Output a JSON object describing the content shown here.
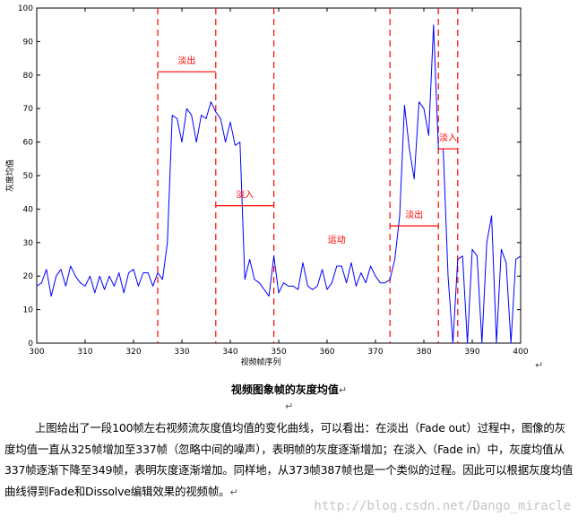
{
  "chart_data": {
    "type": "line",
    "title": "",
    "xlabel": "视频帧序列",
    "ylabel": "灰度均值",
    "xlim": [
      300,
      400
    ],
    "ylim": [
      0,
      100
    ],
    "x_ticks": [
      300,
      310,
      320,
      330,
      340,
      350,
      360,
      370,
      380,
      390,
      400
    ],
    "y_ticks": [
      0,
      10,
      20,
      30,
      40,
      50,
      60,
      70,
      80,
      90,
      100
    ],
    "series": [
      {
        "color": "#0000ff",
        "x": [
          300,
          301,
          302,
          303,
          304,
          305,
          306,
          307,
          308,
          309,
          310,
          311,
          312,
          313,
          314,
          315,
          316,
          317,
          318,
          319,
          320,
          321,
          322,
          323,
          324,
          325,
          326,
          327,
          328,
          329,
          330,
          331,
          332,
          333,
          334,
          335,
          336,
          337,
          338,
          339,
          340,
          341,
          342,
          343,
          344,
          345,
          346,
          347,
          348,
          349,
          350,
          351,
          352,
          353,
          354,
          355,
          356,
          357,
          358,
          359,
          360,
          361,
          362,
          363,
          364,
          365,
          366,
          367,
          368,
          369,
          370,
          371,
          372,
          373,
          374,
          375,
          376,
          377,
          378,
          379,
          380,
          381,
          382,
          383,
          384,
          385,
          386,
          387,
          388,
          389,
          390,
          391,
          392,
          393,
          394,
          395,
          396,
          397,
          398,
          399,
          400
        ],
        "y": [
          17,
          18,
          22,
          14,
          20,
          22,
          17,
          23,
          20,
          18,
          17,
          20,
          15,
          20,
          16,
          20,
          17,
          21,
          15,
          21,
          22,
          17,
          21,
          21,
          17,
          21,
          19,
          30,
          68,
          67,
          60,
          70,
          68,
          60,
          68,
          67,
          72,
          69,
          67,
          60,
          66,
          59,
          60,
          19,
          25,
          19,
          18,
          16,
          14,
          26,
          15,
          18,
          17,
          17,
          16,
          24,
          17,
          16,
          17,
          22,
          16,
          18,
          23,
          23,
          18,
          24,
          17,
          21,
          18,
          23,
          20,
          18,
          18,
          19,
          25,
          38,
          71,
          58,
          49,
          72,
          70,
          62,
          95,
          58,
          58,
          20,
          0,
          25,
          26,
          0,
          28,
          26,
          0,
          30,
          38,
          0,
          28,
          24,
          0,
          25,
          26
        ]
      }
    ],
    "vlines": [
      325,
      337,
      349,
      373,
      383,
      387
    ],
    "annotations": [
      {
        "text": "淡出",
        "x1": 325,
        "x2": 337,
        "y": 81
      },
      {
        "text": "淡入",
        "x1": 337,
        "x2": 349,
        "y": 41
      },
      {
        "text": "运动",
        "x": 362,
        "y": 30
      },
      {
        "text": "淡出",
        "x1": 373,
        "x2": 383,
        "y": 35
      },
      {
        "text": "淡入",
        "x1": 383,
        "x2": 387,
        "y": 58
      }
    ]
  },
  "document": {
    "caption": "视频图象帧的灰度均值",
    "paragraph": "上图给出了一段100帧左右视频流灰度值均值的变化曲线，可以看出：在淡出（Fade out）过程中，图像的灰度均值一直从325帧增加至337帧（忽略中间的噪声），表明帧的灰度逐渐增加；在淡入（Fade in）中，灰度均值从337帧逐渐下降至349帧，表明灰度逐渐增加。同样地，从373帧387帧也是一个类似的过程。因此可以根据灰度均值曲线得到Fade和Dissolve编辑效果的视频帧。",
    "para_mark": "↵",
    "watermark": "http://blog.csdn.net/Dango_miracle"
  }
}
